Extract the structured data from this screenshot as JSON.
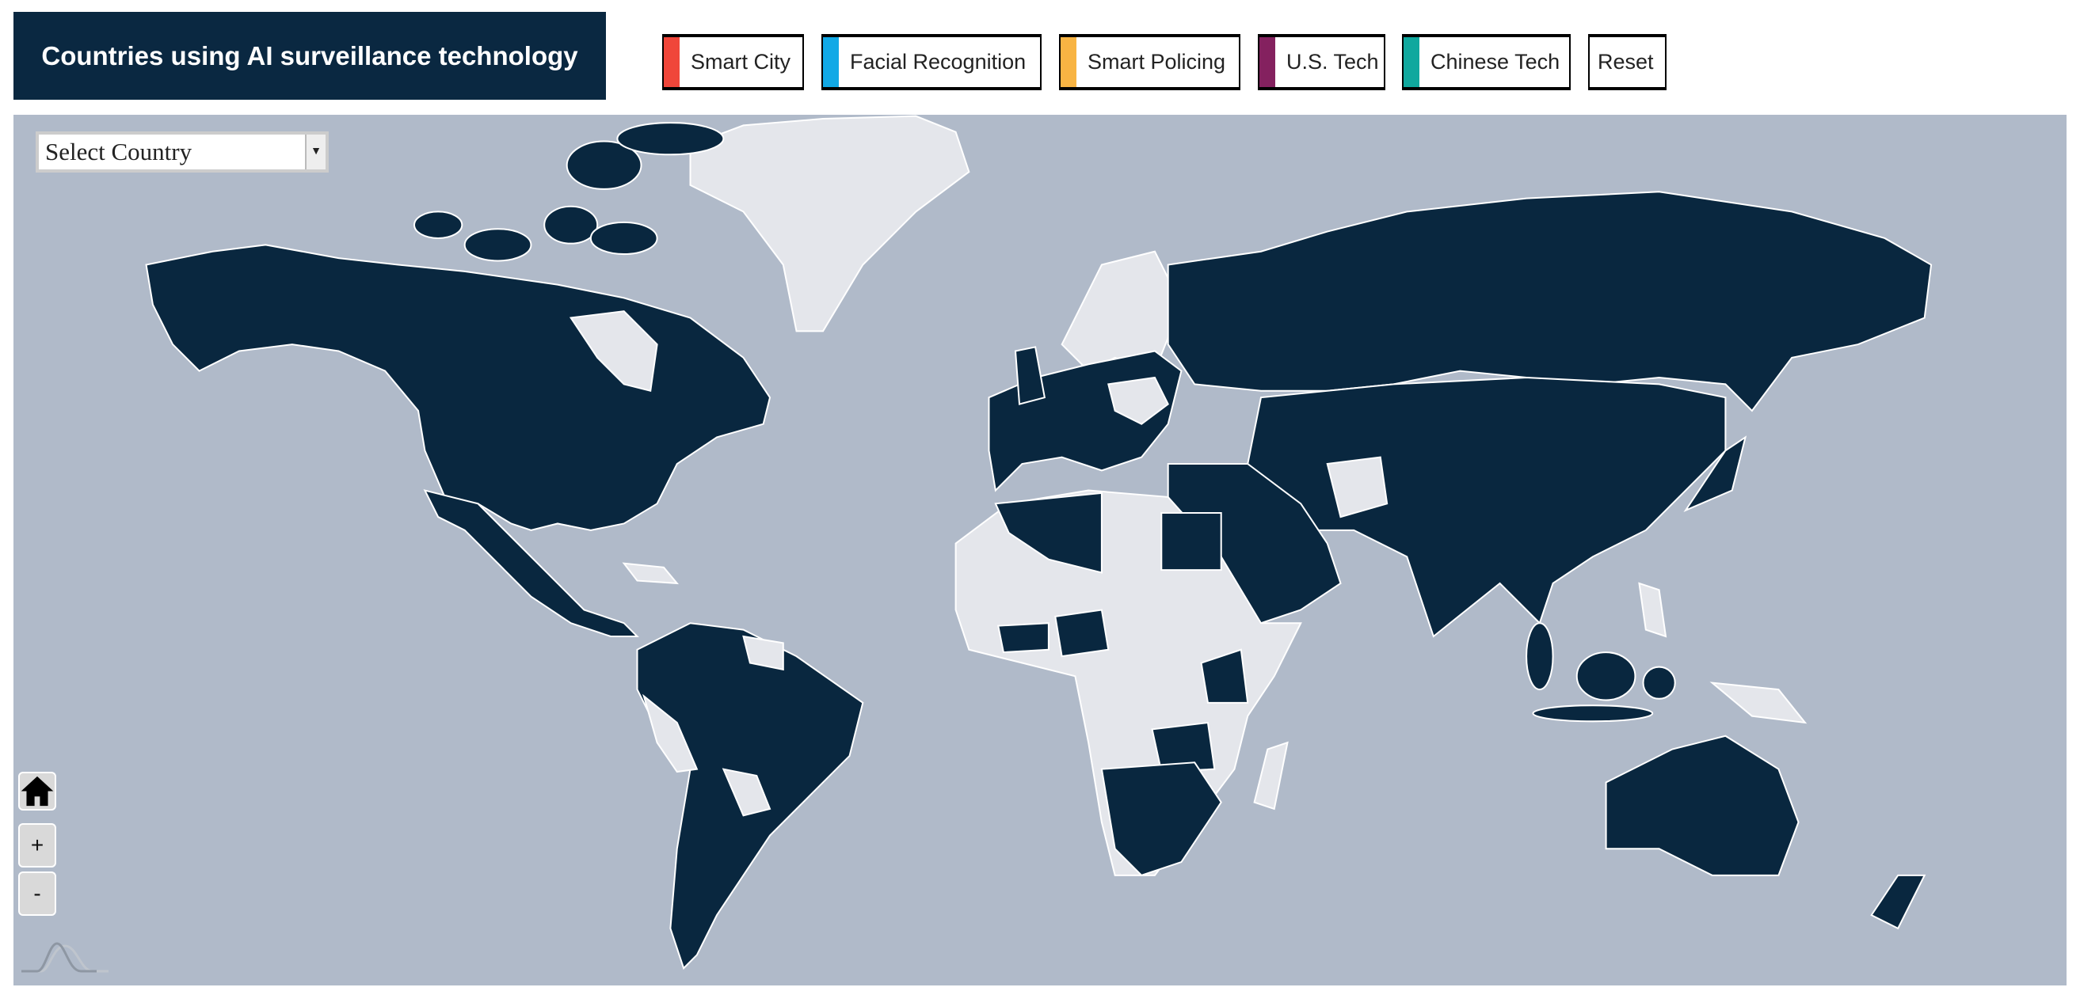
{
  "header": {
    "title": "Countries using AI surveillance technology"
  },
  "filters": [
    {
      "label": "Smart City",
      "color": "#f0463a"
    },
    {
      "label": "Facial Recognition",
      "color": "#12a9e6"
    },
    {
      "label": "Smart Policing",
      "color": "#f8b443"
    },
    {
      "label": "U.S. Tech",
      "color": "#84215f"
    },
    {
      "label": "Chinese Tech",
      "color": "#10a89e"
    }
  ],
  "reset_label": "Reset",
  "map": {
    "select_placeholder": "Select Country",
    "home_icon": "home-icon",
    "zoom_in_label": "+",
    "zoom_out_label": "-",
    "colors": {
      "ocean": "#b0bac9",
      "uses_ai_surveillance": "#09273f",
      "other": "#e4e6eb"
    }
  }
}
